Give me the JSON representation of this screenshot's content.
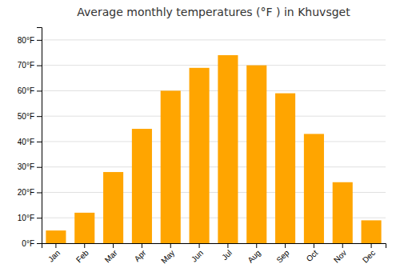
{
  "chart_data": {
    "type": "bar",
    "title": "Average monthly temperatures (°F ) in Khuvsget",
    "categories": [
      "Jan",
      "Feb",
      "Mar",
      "Apr",
      "May",
      "Jun",
      "Jul",
      "Aug",
      "Sep",
      "Oct",
      "Nov",
      "Dec"
    ],
    "values": [
      5,
      12,
      28,
      45,
      60,
      69,
      74,
      70,
      59,
      43,
      24,
      9
    ],
    "color": "#FFA500",
    "ylim": [
      0,
      85
    ],
    "yticks": [
      {
        "value": 0,
        "label": "0°F"
      },
      {
        "value": 10,
        "label": "10°F"
      },
      {
        "value": 20,
        "label": "20°F"
      },
      {
        "value": 30,
        "label": "30°F"
      },
      {
        "value": 40,
        "label": "40°F"
      },
      {
        "value": 50,
        "label": "50°F"
      },
      {
        "value": 60,
        "label": "60°F"
      },
      {
        "value": 70,
        "label": "70°F"
      },
      {
        "value": 80,
        "label": "80°F"
      }
    ],
    "grid": true
  }
}
